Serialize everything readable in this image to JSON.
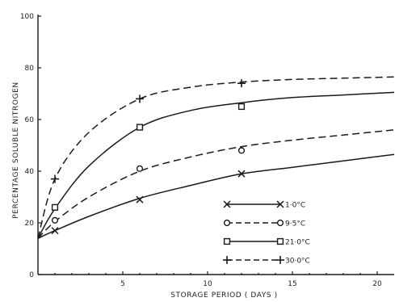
{
  "chart_data": {
    "type": "line",
    "title": "",
    "xlabel": "STORAGE PERIOD ( DAYS )",
    "ylabel": "PERCENTAGE SOLUBLE NITROGEN",
    "xlim": [
      0,
      21
    ],
    "ylim": [
      0,
      100
    ],
    "x_ticks": [
      "5",
      "10",
      "15",
      "20"
    ],
    "y_ticks": [
      "0",
      "20",
      "40",
      "60",
      "80",
      "100"
    ],
    "grid": false,
    "legend_position": "bottom-right",
    "series": [
      {
        "name": "1·0°C",
        "marker": "x",
        "line_style": "solid",
        "points": [
          [
            1,
            17
          ],
          [
            6,
            29
          ],
          [
            12,
            39
          ]
        ],
        "curve": [
          [
            0,
            14
          ],
          [
            1,
            17
          ],
          [
            3,
            22.5
          ],
          [
            6,
            29.5
          ],
          [
            9,
            34.5
          ],
          [
            12,
            39
          ],
          [
            15,
            41.5
          ],
          [
            18,
            44
          ],
          [
            21,
            46.5
          ]
        ]
      },
      {
        "name": "9·5°C",
        "marker": "circle",
        "line_style": "dashed",
        "points": [
          [
            1,
            21
          ],
          [
            6,
            41
          ],
          [
            12,
            48
          ]
        ],
        "curve": [
          [
            0,
            14
          ],
          [
            1,
            20.5
          ],
          [
            3,
            30
          ],
          [
            6,
            40
          ],
          [
            9,
            45.5
          ],
          [
            12,
            49.5
          ],
          [
            15,
            52
          ],
          [
            18,
            54
          ],
          [
            21,
            56
          ]
        ]
      },
      {
        "name": "21·0°C",
        "marker": "square",
        "line_style": "solid",
        "points": [
          [
            1,
            26
          ],
          [
            6,
            57
          ],
          [
            12,
            65
          ]
        ],
        "curve": [
          [
            0,
            14
          ],
          [
            1,
            25.5
          ],
          [
            3,
            42
          ],
          [
            6,
            57
          ],
          [
            9,
            63.5
          ],
          [
            12,
            66.5
          ],
          [
            15,
            68.5
          ],
          [
            18,
            69.5
          ],
          [
            21,
            70.5
          ]
        ]
      },
      {
        "name": "30·0°C",
        "marker": "plus",
        "line_style": "dashed",
        "points": [
          [
            1,
            37
          ],
          [
            6,
            68
          ],
          [
            12,
            74
          ]
        ],
        "curve": [
          [
            0,
            14
          ],
          [
            1,
            37
          ],
          [
            3,
            55
          ],
          [
            6,
            68
          ],
          [
            9,
            72.5
          ],
          [
            12,
            74.5
          ],
          [
            15,
            75.5
          ],
          [
            18,
            76
          ],
          [
            21,
            76.5
          ]
        ]
      }
    ]
  }
}
